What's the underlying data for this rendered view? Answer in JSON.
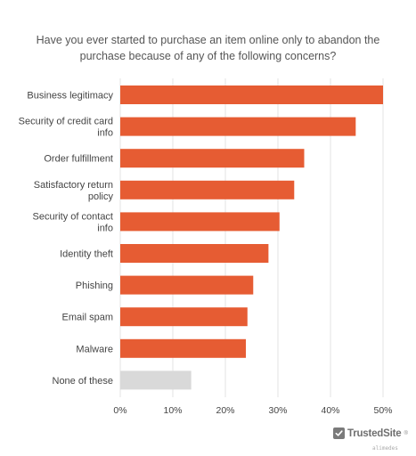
{
  "title_lines": [
    "Have you ever started to purchase an item online only to abandon the",
    "purchase because of any of the following concerns?"
  ],
  "chart_data": {
    "type": "bar",
    "orientation": "horizontal",
    "title": "Have you ever started to purchase an item online only to abandon the purchase because of any of the following concerns?",
    "categories": [
      [
        "Business legitimacy"
      ],
      [
        "Security of credit card",
        "info"
      ],
      [
        "Order fulfillment"
      ],
      [
        "Satisfactory return",
        "policy"
      ],
      [
        "Security of contact",
        "info"
      ],
      [
        "Identity theft"
      ],
      [
        "Phishing"
      ],
      [
        "Email spam"
      ],
      [
        "Malware"
      ],
      [
        "None of these"
      ]
    ],
    "values": [
      50,
      44.8,
      35,
      33.1,
      30.3,
      28.2,
      25.3,
      24.2,
      23.9,
      13.5
    ],
    "bar_colors": [
      "#e65c33",
      "#e65c33",
      "#e65c33",
      "#e65c33",
      "#e65c33",
      "#e65c33",
      "#e65c33",
      "#e65c33",
      "#e65c33",
      "#d9d9d9"
    ],
    "xlim": [
      0,
      50
    ],
    "xticks": [
      "0%",
      "10%",
      "20%",
      "30%",
      "40%",
      "50%"
    ],
    "xtick_values": [
      0,
      10,
      20,
      30,
      40,
      50
    ],
    "grid": true,
    "legend": "none"
  },
  "brand": {
    "name": "TrustedSite",
    "mark": "®",
    "watermark": "alimedes"
  },
  "colors": {
    "bar": "#e65c33",
    "bar_muted": "#d9d9d9",
    "grid": "#e3e3e3"
  }
}
